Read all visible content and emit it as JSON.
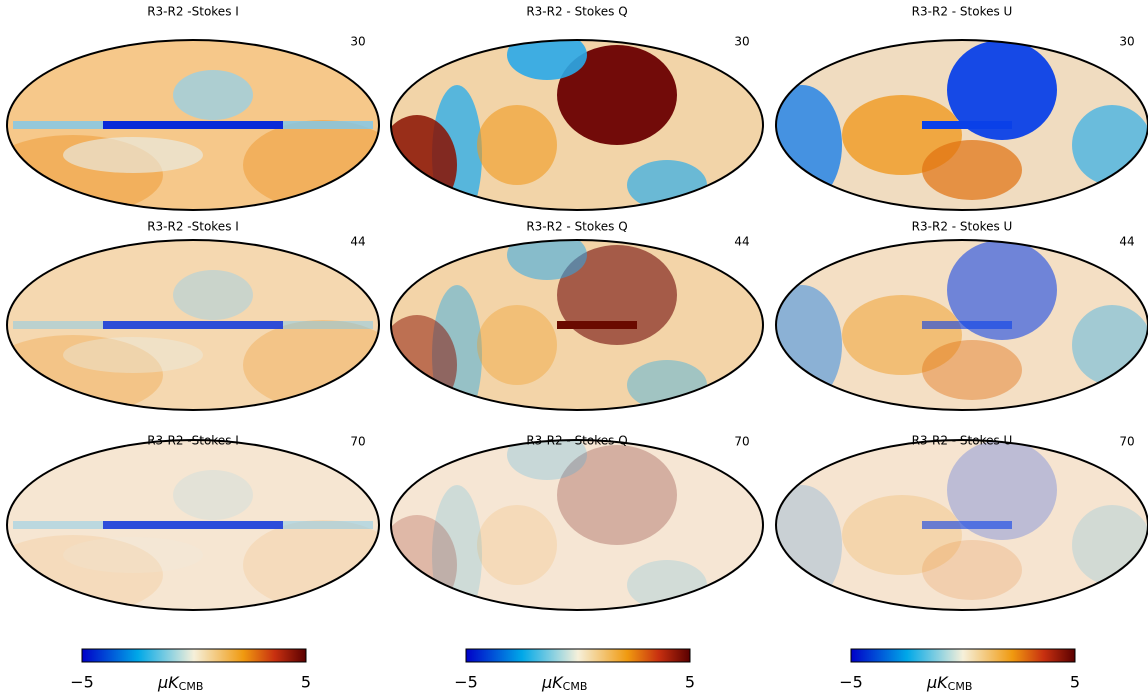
{
  "panels": [
    {
      "title": "R3-R2 -Stokes I",
      "frequency": "30"
    },
    {
      "title": "R3-R2 - Stokes Q",
      "frequency": "30"
    },
    {
      "title": "R3-R2 - Stokes U",
      "frequency": "30"
    },
    {
      "title": "R3-R2 -Stokes I",
      "frequency": "44"
    },
    {
      "title": "R3-R2 - Stokes Q",
      "frequency": "44"
    },
    {
      "title": "R3-R2 - Stokes U",
      "frequency": "44"
    },
    {
      "title": "R3-R2 -Stokes I",
      "frequency": "70"
    },
    {
      "title": "R3-R2 - Stokes Q",
      "frequency": "70"
    },
    {
      "title": "R3-R2 - Stokes U",
      "frequency": "70"
    }
  ],
  "colorbars": [
    {
      "min_label": "−5",
      "max_label": "5",
      "unit": "μK",
      "unit_subscript": "CMB"
    },
    {
      "min_label": "−5",
      "max_label": "5",
      "unit": "μK",
      "unit_subscript": "CMB"
    },
    {
      "min_label": "−5",
      "max_label": "5",
      "unit": "μK",
      "unit_subscript": "CMB"
    }
  ]
}
